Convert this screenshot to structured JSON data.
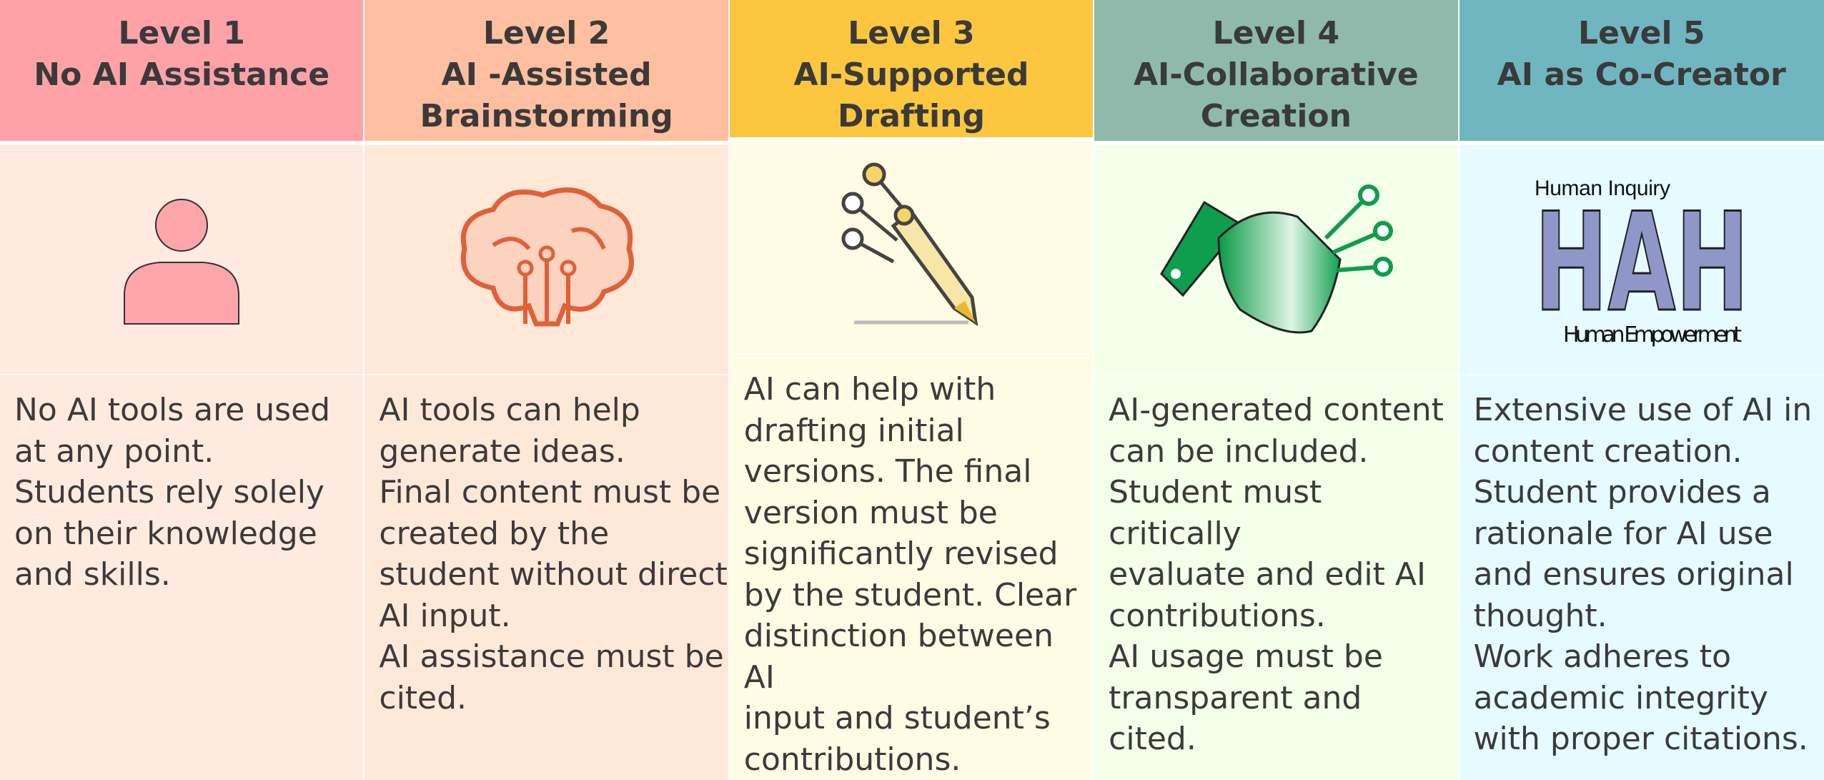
{
  "levels": [
    {
      "level": "Level 1",
      "title": [
        "No AI Assistance"
      ],
      "description": [
        "No AI tools are used",
        "at any point.",
        "Students rely solely",
        "on their knowledge",
        "and skills."
      ]
    },
    {
      "level": "Level 2",
      "title": [
        "AI -Assisted",
        "Brainstorming"
      ],
      "description": [
        "AI tools can help",
        "generate ideas.",
        "Final content must be",
        "created by the",
        "student without direct",
        "AI input.",
        "AI assistance must be",
        "cited."
      ]
    },
    {
      "level": "Level 3",
      "title": [
        "AI-Supported",
        "Drafting"
      ],
      "description": [
        "AI can help with",
        "drafting initial",
        "versions. The final",
        "version must be",
        "significantly revised",
        "by the student. Clear",
        "distinction between AI",
        "input and student’s",
        "contributions."
      ]
    },
    {
      "level": "Level 4",
      "title": [
        "AI-Collaborative",
        "Creation"
      ],
      "description": [
        "AI-generated content",
        "can be included.",
        "Student must critically",
        "evaluate and edit AI",
        "contributions.",
        "AI usage must be",
        "transparent and cited."
      ]
    },
    {
      "level": "Level 5",
      "title": [
        "AI as Co-Creator"
      ],
      "description": [
        "Extensive use of AI in",
        "content creation.",
        "Student provides a",
        "rationale for AI use",
        "and ensures original",
        "thought.",
        "Work adheres to",
        "academic integrity",
        "with proper citations."
      ],
      "icon_text": {
        "top": "Human Inquiry",
        "letters": "HAH",
        "bottom": "Human Empowerment"
      }
    }
  ]
}
